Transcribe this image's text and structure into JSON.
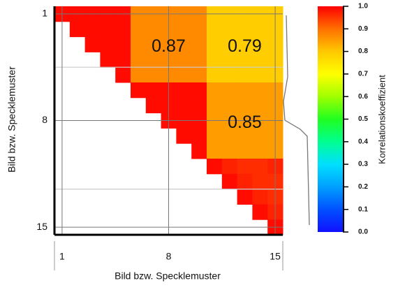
{
  "chart_data": {
    "type": "heatmap",
    "x_label": "Bild bzw. Specklemuster",
    "y_label": "Bild bzw. Specklemuster",
    "colorbar_label": "Korrelationskoeffizient",
    "xticks": [
      1,
      8,
      15
    ],
    "yticks": [
      1,
      8,
      15
    ],
    "xlim": [
      0.5,
      15.5
    ],
    "ylim": [
      0.5,
      15.5
    ],
    "clim": [
      0,
      1
    ],
    "cticks": [
      {
        "value": 0,
        "label": "0.0"
      },
      0.1,
      0.2,
      0.3,
      0.4,
      0.5,
      0.6,
      0.7,
      0.8,
      0.9,
      {
        "value": 1,
        "label": "1.0"
      }
    ],
    "colormap": [
      "#1010ff",
      "#0050ff",
      "#00a0ff",
      "#00e0ff",
      "#00ff90",
      "#20ff20",
      "#a0ff00",
      "#ffff00",
      "#ffc800",
      "#ff7000",
      "#ff0000"
    ],
    "annotations": [
      "0.87",
      "0.79",
      "0.85"
    ],
    "matrix": [
      [
        0.99,
        0.99,
        0.99,
        0.99,
        0.99,
        0.87,
        0.87,
        0.87,
        0.87,
        0.87,
        0.79,
        0.79,
        0.79,
        0.79,
        0.79
      ],
      [
        null,
        0.99,
        0.99,
        0.99,
        0.99,
        0.87,
        0.87,
        0.87,
        0.87,
        0.87,
        0.79,
        0.79,
        0.79,
        0.79,
        0.79
      ],
      [
        null,
        null,
        0.99,
        0.99,
        0.99,
        0.87,
        0.87,
        0.87,
        0.87,
        0.87,
        0.79,
        0.79,
        0.79,
        0.79,
        0.79
      ],
      [
        null,
        null,
        null,
        0.99,
        0.99,
        0.87,
        0.87,
        0.87,
        0.87,
        0.87,
        0.79,
        0.79,
        0.79,
        0.79,
        0.79
      ],
      [
        null,
        null,
        null,
        null,
        0.99,
        0.87,
        0.87,
        0.87,
        0.87,
        0.87,
        0.79,
        0.79,
        0.79,
        0.79,
        0.79
      ],
      [
        null,
        null,
        null,
        null,
        null,
        0.99,
        0.99,
        0.99,
        0.99,
        0.99,
        0.85,
        0.85,
        0.85,
        0.85,
        0.85
      ],
      [
        null,
        null,
        null,
        null,
        null,
        null,
        0.99,
        0.99,
        0.99,
        0.99,
        0.85,
        0.85,
        0.85,
        0.85,
        0.85
      ],
      [
        null,
        null,
        null,
        null,
        null,
        null,
        null,
        0.99,
        0.99,
        0.99,
        0.85,
        0.85,
        0.85,
        0.85,
        0.85
      ],
      [
        null,
        null,
        null,
        null,
        null,
        null,
        null,
        null,
        0.99,
        0.99,
        0.85,
        0.85,
        0.85,
        0.85,
        0.85
      ],
      [
        null,
        null,
        null,
        null,
        null,
        null,
        null,
        null,
        null,
        0.99,
        0.85,
        0.85,
        0.85,
        0.85,
        0.85
      ],
      [
        null,
        null,
        null,
        null,
        null,
        null,
        null,
        null,
        null,
        null,
        0.99,
        0.97,
        0.96,
        0.96,
        0.97
      ],
      [
        null,
        null,
        null,
        null,
        null,
        null,
        null,
        null,
        null,
        null,
        null,
        0.99,
        0.97,
        0.96,
        0.96
      ],
      [
        null,
        null,
        null,
        null,
        null,
        null,
        null,
        null,
        null,
        null,
        null,
        null,
        0.99,
        0.97,
        0.96
      ],
      [
        null,
        null,
        null,
        null,
        null,
        null,
        null,
        null,
        null,
        null,
        null,
        null,
        null,
        0.99,
        0.97
      ],
      [
        null,
        null,
        null,
        null,
        null,
        null,
        null,
        null,
        null,
        null,
        null,
        null,
        null,
        null,
        0.99
      ]
    ]
  }
}
